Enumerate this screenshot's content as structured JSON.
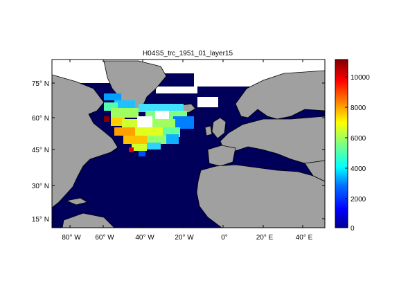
{
  "title": "H04S5_trc_1951_01_layer15",
  "x_ticks": [
    "80° W",
    "60° W",
    "40° W",
    "20° W",
    "0°",
    "20° E",
    "40° E"
  ],
  "y_ticks": [
    "75° N",
    "60° N",
    "45° N",
    "30° N",
    "15° N"
  ],
  "colorbar": {
    "ticks": [
      "10000",
      "8000",
      "6000",
      "4000",
      "2000",
      "0"
    ],
    "range": [
      0,
      11000
    ],
    "colormap": "jet"
  },
  "colors": {
    "land": "#a0a0a0",
    "ocean_low": "#00005a",
    "ice_or_nodata": "#ffffff",
    "coastline": "#000000"
  }
}
